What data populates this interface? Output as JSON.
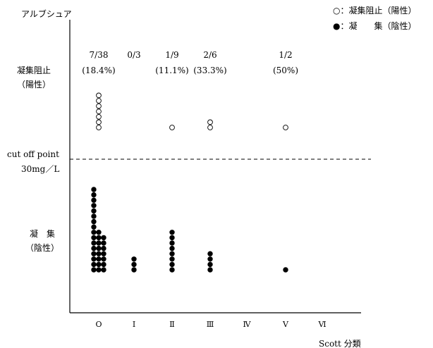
{
  "chart_data": {
    "type": "scatter",
    "ylabel": "アルブシュア",
    "xlabel": "Scott 分類",
    "categories": [
      "O",
      "Ⅰ",
      "Ⅱ",
      "Ⅲ",
      "Ⅳ",
      "Ⅴ",
      "Ⅵ"
    ],
    "y_regions": {
      "upper": [
        "凝集阻止",
        "（陽性）"
      ],
      "lower": [
        "凝　集",
        "（陰性）"
      ]
    },
    "cutoff": {
      "label_line1": "cut off point",
      "label_line2": "30mg／L",
      "style": "dashed"
    },
    "legend": {
      "placement": "top-right",
      "open": "○：凝集阻止（陽性）",
      "filled": "●：凝　　集（陰性）"
    },
    "series": [
      {
        "name": "凝集阻止（陽性）",
        "marker": "open-circle",
        "counts": [
          7,
          0,
          1,
          2,
          0,
          1,
          0
        ]
      },
      {
        "name": "凝集（陰性）",
        "marker": "filled-circle",
        "counts": [
          31,
          3,
          8,
          4,
          0,
          1,
          0
        ]
      }
    ],
    "annotations": [
      {
        "category": "O",
        "ratio": "7/38",
        "percent": "(18.4%)"
      },
      {
        "category": "Ⅰ",
        "ratio": "0/3",
        "percent": ""
      },
      {
        "category": "Ⅱ",
        "ratio": "1/9",
        "percent": "(11.1%)"
      },
      {
        "category": "Ⅲ",
        "ratio": "2/6",
        "percent": "(33.3%)"
      },
      {
        "category": "Ⅴ",
        "ratio": "1/2",
        "percent": "(50%)"
      }
    ]
  }
}
